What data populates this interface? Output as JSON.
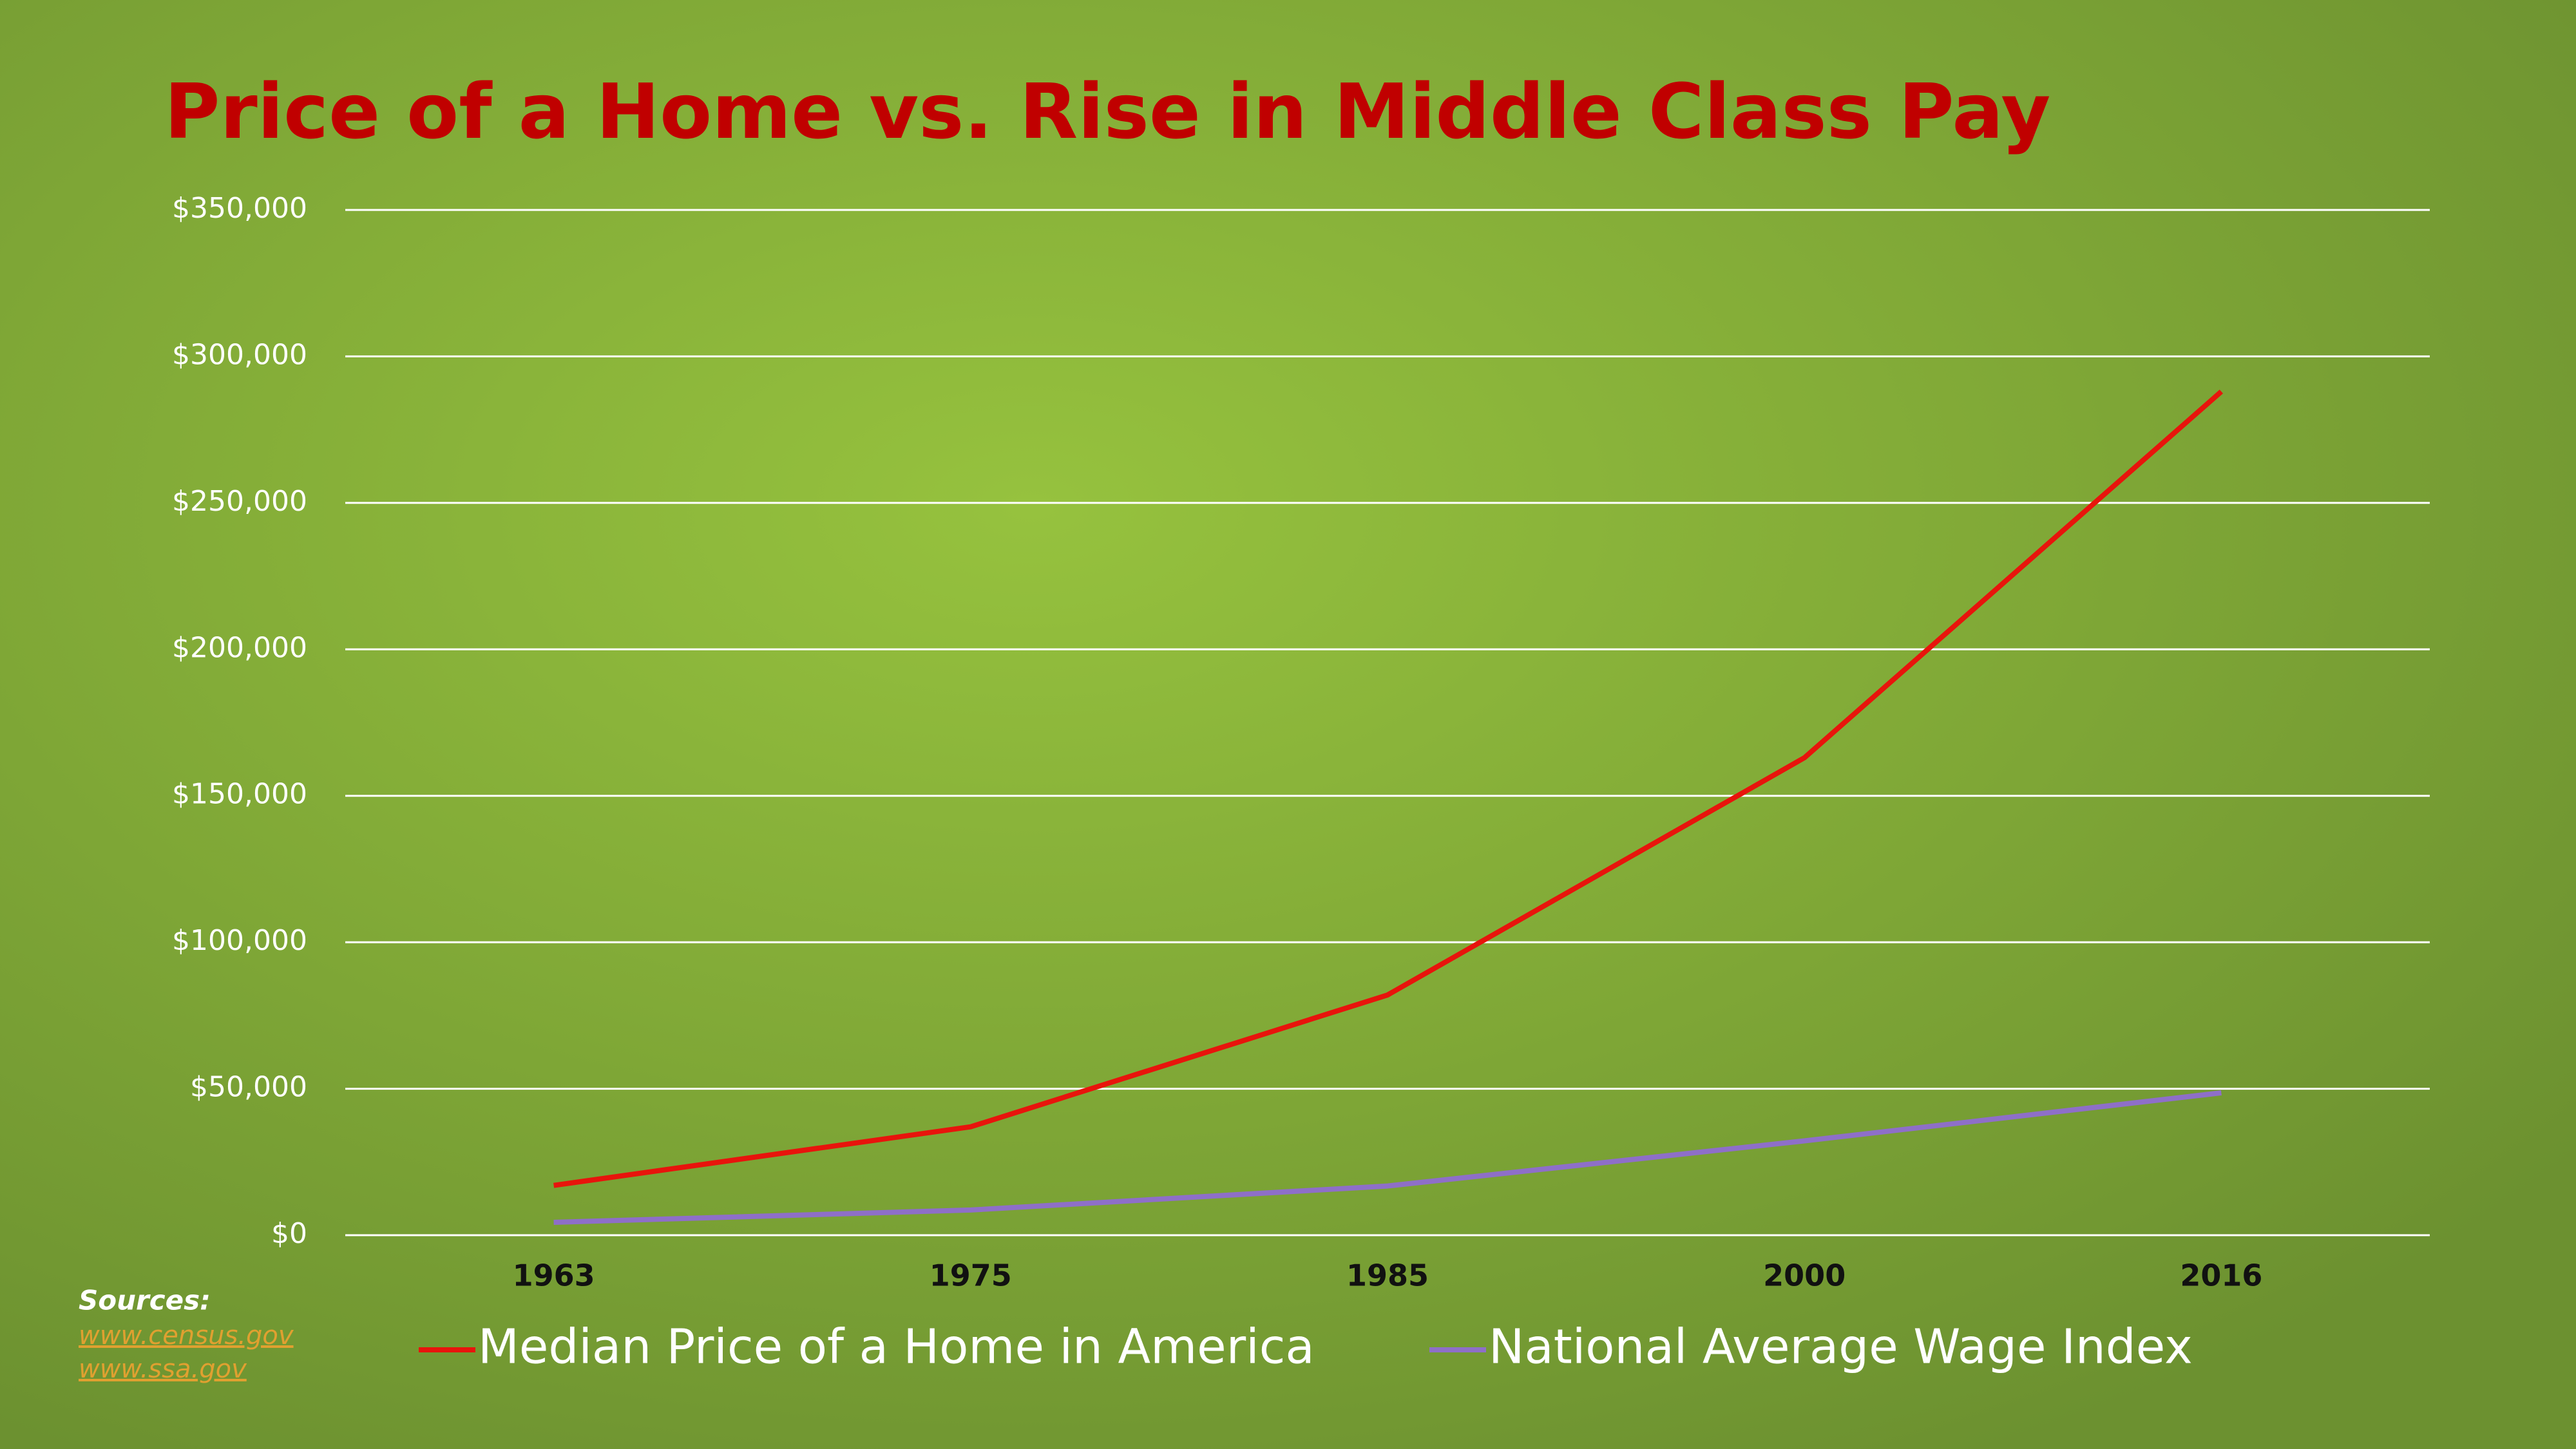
{
  "chart_data": {
    "type": "line",
    "title": "Price of a Home vs. Rise in Middle Class Pay",
    "categories": [
      "1963",
      "1975",
      "1985",
      "2000",
      "2016"
    ],
    "series": [
      {
        "name": "Median Price of a Home in America",
        "color": "#e8140c",
        "values": [
          17000,
          37000,
          82000,
          163000,
          288000
        ]
      },
      {
        "name": "National Average Wage Index",
        "color": "#8e6fc8",
        "values": [
          4400,
          8600,
          16800,
          32200,
          48600
        ]
      }
    ],
    "ylim": [
      0,
      350000
    ],
    "yticks": [
      {
        "value": 0,
        "label": "$0"
      },
      {
        "value": 50000,
        "label": "$50,000"
      },
      {
        "value": 100000,
        "label": "$100,000"
      },
      {
        "value": 150000,
        "label": "$150,000"
      },
      {
        "value": 200000,
        "label": "$200,000"
      },
      {
        "value": 250000,
        "label": "$250,000"
      },
      {
        "value": 300000,
        "label": "$300,000"
      },
      {
        "value": 350000,
        "label": "$350,000"
      }
    ],
    "grid": true,
    "legend": "bottom",
    "sources": {
      "label": "Sources:",
      "links": [
        "www.census.gov",
        "www.ssa.gov"
      ]
    }
  }
}
